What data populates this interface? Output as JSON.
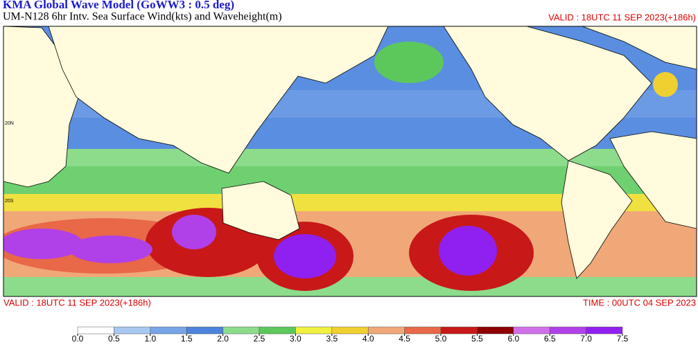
{
  "header": {
    "title": "KMA  Global Wave Model (GoWW3 : 0.5 deg)",
    "subtitle": "UM-N128  6hr Intv. Sea Surface Wind(kts) and Waveheight(m)",
    "valid_top": "VALID : 18UTC 11 SEP 2023(+186h)"
  },
  "footer": {
    "valid": "VALID : 18UTC 11 SEP 2023(+186h)",
    "time": "TIME : 00UTC 04 SEP 2023"
  },
  "map": {
    "lat_labels": [
      "20N",
      "20S"
    ]
  },
  "colorbar": {
    "levels": [
      {
        "value": 0,
        "label": "0.0"
      },
      {
        "value": 0.5,
        "label": "0.5"
      },
      {
        "value": 1,
        "label": "1.0"
      },
      {
        "value": 1.5,
        "label": "1.5"
      },
      {
        "value": 2,
        "label": "2.0"
      },
      {
        "value": 2.5,
        "label": "2.5"
      },
      {
        "value": 3,
        "label": "3.0"
      },
      {
        "value": 3.5,
        "label": "3.5"
      },
      {
        "value": 4,
        "label": "4.0"
      },
      {
        "value": 4.5,
        "label": "4.5"
      },
      {
        "value": 5,
        "label": "5.0"
      },
      {
        "value": 5.5,
        "label": "5.5"
      },
      {
        "value": 6,
        "label": "6.0"
      },
      {
        "value": 6.5,
        "label": "6.5"
      },
      {
        "value": 7,
        "label": "7.0"
      },
      {
        "value": 7.5,
        "label": "7.5"
      }
    ],
    "colors": [
      "#ffffff",
      "#a8c8f0",
      "#78a4e8",
      "#4c84dc",
      "#8cdc8c",
      "#5cc85c",
      "#f0f040",
      "#f0d030",
      "#f0a878",
      "#e86848",
      "#c81818",
      "#8c0000",
      "#d070e8",
      "#b040e8",
      "#9020f0"
    ]
  }
}
